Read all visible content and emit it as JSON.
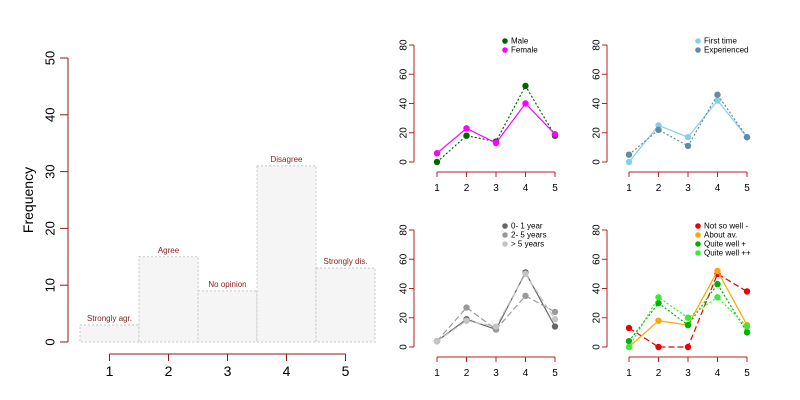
{
  "chart_data": [
    {
      "type": "bar",
      "xlabel": "",
      "ylabel": "Frequency",
      "ylim": [
        0,
        50
      ],
      "yticks": [
        0,
        10,
        20,
        30,
        40,
        50
      ],
      "categories": [
        "1",
        "2",
        "3",
        "4",
        "5"
      ],
      "bar_labels": [
        "Strongly agr.",
        "Agree",
        "No opinion",
        "Disagree",
        "Strongly dis."
      ],
      "values": [
        3,
        15,
        9,
        31,
        13
      ],
      "colors": {
        "fill": "#f5f5f5",
        "stroke": "#c8c8c8",
        "axis": "#8b1a1a",
        "label": "#8b1a1a",
        "tick_text": "#000000"
      }
    },
    {
      "type": "line",
      "x": [
        1,
        2,
        3,
        4,
        5
      ],
      "ylim": [
        0,
        80
      ],
      "yticks": [
        0,
        20,
        40,
        60,
        80
      ],
      "legend_position": "top-right",
      "series": [
        {
          "name": "Male",
          "values": [
            0,
            18,
            14,
            52,
            18
          ],
          "color": "#006400",
          "dash": "2,2"
        },
        {
          "name": "Female",
          "values": [
            6,
            23,
            13,
            40,
            19
          ],
          "color": "#ff00ff",
          "dash": ""
        }
      ]
    },
    {
      "type": "line",
      "x": [
        1,
        2,
        3,
        4,
        5
      ],
      "ylim": [
        0,
        80
      ],
      "yticks": [
        0,
        20,
        40,
        60,
        80
      ],
      "legend_position": "top-right",
      "series": [
        {
          "name": "First time",
          "values": [
            0,
            25,
            17,
            42,
            17
          ],
          "color": "#87ceeb",
          "dash": ""
        },
        {
          "name": "Experienced",
          "values": [
            5,
            22,
            11,
            46,
            17
          ],
          "color": "#5f8ea0",
          "dash": "2,2"
        }
      ]
    },
    {
      "type": "line",
      "x": [
        1,
        2,
        3,
        4,
        5
      ],
      "ylim": [
        0,
        80
      ],
      "yticks": [
        0,
        20,
        40,
        60,
        80
      ],
      "legend_position": "top-right",
      "series": [
        {
          "name": "0- 1 year",
          "values": [
            4,
            19,
            12,
            51,
            14
          ],
          "color": "#666666",
          "dash": ""
        },
        {
          "name": "2- 5 years",
          "values": [
            4,
            27,
            12,
            35,
            24
          ],
          "color": "#9a9a9a",
          "dash": "6,3"
        },
        {
          "name": "> 5 years",
          "values": [
            4,
            18,
            14,
            50,
            19
          ],
          "color": "#c4c4c4",
          "dash": "6,3"
        }
      ]
    },
    {
      "type": "line",
      "x": [
        1,
        2,
        3,
        4,
        5
      ],
      "ylim": [
        0,
        80
      ],
      "yticks": [
        0,
        20,
        40,
        60,
        80
      ],
      "legend_position": "top-right",
      "series": [
        {
          "name": "Not so well -",
          "values": [
            13,
            0,
            0,
            50,
            38
          ],
          "color": "#ee0000",
          "dash": "6,3"
        },
        {
          "name": "About av.",
          "values": [
            0,
            18,
            15,
            52,
            15
          ],
          "color": "#ffa500",
          "dash": ""
        },
        {
          "name": "Quite well +",
          "values": [
            4,
            30,
            15,
            43,
            10
          ],
          "color": "#00b000",
          "dash": "2,2"
        },
        {
          "name": "Quite well ++",
          "values": [
            0,
            34,
            20,
            34,
            14
          ],
          "color": "#33ee33",
          "dash": "2,2"
        }
      ]
    }
  ]
}
